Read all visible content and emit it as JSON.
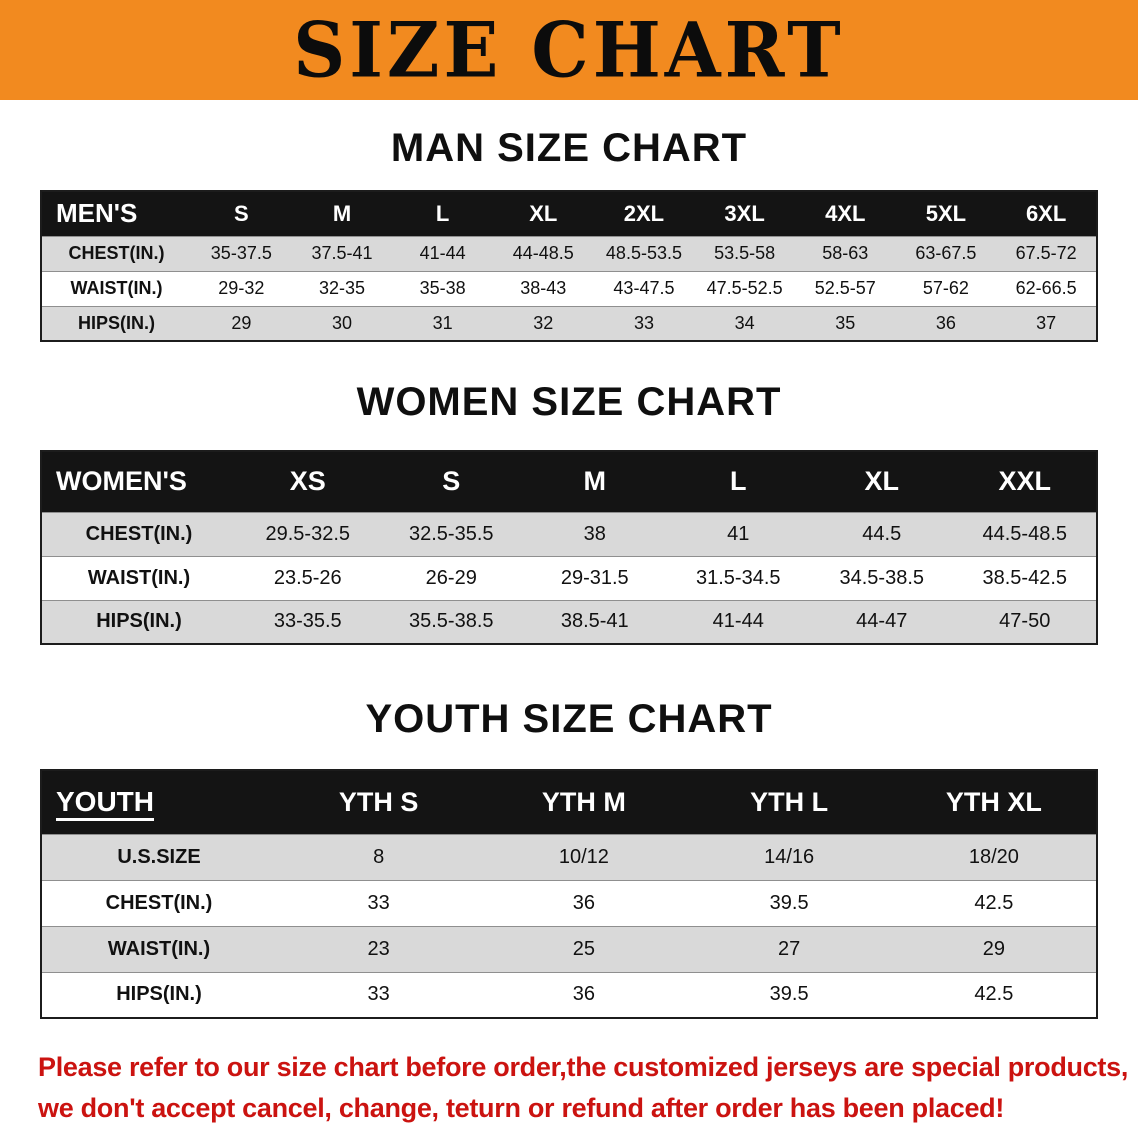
{
  "banner": {
    "title": "SIZE CHART"
  },
  "sections": {
    "men": {
      "heading": "MAN SIZE CHART",
      "table": {
        "header": [
          "MEN'S",
          "S",
          "M",
          "L",
          "XL",
          "2XL",
          "3XL",
          "4XL",
          "5XL",
          "6XL"
        ],
        "rows": [
          [
            "CHEST(IN.)",
            "35-37.5",
            "37.5-41",
            "41-44",
            "44-48.5",
            "48.5-53.5",
            "53.5-58",
            "58-63",
            "63-67.5",
            "67.5-72"
          ],
          [
            "WAIST(IN.)",
            "29-32",
            "32-35",
            "35-38",
            "38-43",
            "43-47.5",
            "47.5-52.5",
            "52.5-57",
            "57-62",
            "62-66.5"
          ],
          [
            "HIPS(IN.)",
            "29",
            "30",
            "31",
            "32",
            "33",
            "34",
            "35",
            "36",
            "37"
          ]
        ]
      }
    },
    "women": {
      "heading": "WOMEN SIZE CHART",
      "table": {
        "header": [
          "WOMEN'S",
          "XS",
          "S",
          "M",
          "L",
          "XL",
          "XXL"
        ],
        "rows": [
          [
            "CHEST(IN.)",
            "29.5-32.5",
            "32.5-35.5",
            "38",
            "41",
            "44.5",
            "44.5-48.5"
          ],
          [
            "WAIST(IN.)",
            "23.5-26",
            "26-29",
            "29-31.5",
            "31.5-34.5",
            "34.5-38.5",
            "38.5-42.5"
          ],
          [
            "HIPS(IN.)",
            "33-35.5",
            "35.5-38.5",
            "38.5-41",
            "41-44",
            "44-47",
            "47-50"
          ]
        ]
      }
    },
    "youth": {
      "heading": "YOUTH SIZE CHART",
      "table": {
        "header": [
          "YOUTH",
          "YTH S",
          "YTH M",
          "YTH L",
          "YTH XL"
        ],
        "rows": [
          [
            "U.S.SIZE",
            "8",
            "10/12",
            "14/16",
            "18/20"
          ],
          [
            "CHEST(IN.)",
            "33",
            "36",
            "39.5",
            "42.5"
          ],
          [
            "WAIST(IN.)",
            "23",
            "25",
            "27",
            "29"
          ],
          [
            "HIPS(IN.)",
            "33",
            "36",
            "39.5",
            "42.5"
          ]
        ]
      }
    }
  },
  "disclaimer": {
    "lines": [
      "Please refer to our size chart before order,the customized jerseys are special products,",
      "we don't accept cancel, change, teturn or refund after order has been placed!"
    ]
  },
  "colors": {
    "banner_bg": "#f28a1f",
    "table_header_bg": "#141414",
    "row_shaded": "#d9d9d9",
    "disclaimer_red": "#cb1310"
  }
}
